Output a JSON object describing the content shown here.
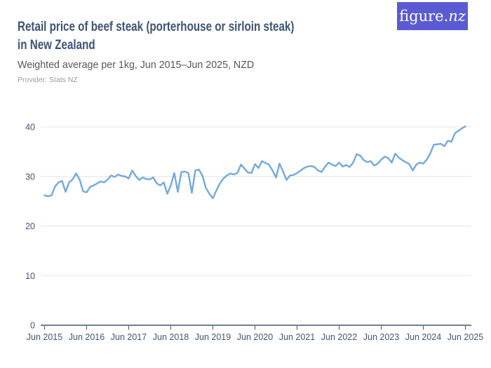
{
  "header": {
    "title_line1": "Retail price of beef steak (porterhouse or sirloin steak)",
    "title_line2": "in New Zealand",
    "subtitle": "Weighted average per 1kg, Jun 2015–Jun 2025, NZD",
    "provider": "Provider: Stats NZ",
    "logo_text_main": "figure.",
    "logo_text_suffix": "nz"
  },
  "colors": {
    "logo_background": "#5a5bd3",
    "title_text": "#3c5472",
    "subtitle_text": "#53575d",
    "provider_text": "#9b9c9e",
    "axis": "#3e5674",
    "grid": "#e4e4e4",
    "line": "#73a9dc"
  },
  "chart_data": {
    "type": "line",
    "title": "Retail price of beef steak (porterhouse or sirloin steak) in New Zealand",
    "subtitle": "Weighted average per 1kg, Jun 2015–Jun 2025, NZD",
    "unit": "NZD per 1kg",
    "x_start": "Jun 2015",
    "x_end": "Jun 2025",
    "x_interval": "monthly",
    "x_tick_labels": [
      "Jun 2015",
      "Jun 2016",
      "Jun 2017",
      "Jun 2018",
      "Jun 2019",
      "Jun 2020",
      "Jun 2021",
      "Jun 2022",
      "Jun 2023",
      "Jun 2024",
      "Jun 2025"
    ],
    "y_ticks": [
      0,
      10,
      20,
      30,
      40
    ],
    "ylim": [
      0,
      40
    ],
    "grid": "horizontal",
    "legend": "none",
    "series": [
      {
        "name": "Retail price of beef steak, weighted average per 1kg",
        "color": "#73a9dc",
        "values": [
          26.2,
          26.0,
          26.2,
          28.0,
          28.8,
          29.1,
          26.9,
          28.8,
          29.4,
          30.6,
          29.4,
          27.0,
          26.8,
          27.9,
          28.2,
          28.6,
          29.0,
          28.8,
          29.4,
          30.2,
          29.9,
          30.4,
          30.1,
          30.0,
          29.6,
          31.2,
          30.1,
          29.3,
          29.8,
          29.5,
          29.4,
          29.8,
          28.6,
          28.2,
          28.8,
          26.5,
          28.2,
          30.7,
          26.9,
          30.9,
          31.0,
          30.7,
          26.7,
          31.2,
          31.4,
          30.2,
          27.7,
          26.5,
          25.6,
          27.2,
          28.6,
          29.6,
          30.2,
          30.6,
          30.4,
          30.7,
          32.4,
          31.6,
          30.8,
          30.7,
          32.5,
          31.7,
          33.1,
          32.7,
          32.4,
          31.2,
          29.8,
          32.6,
          31.0,
          29.3,
          30.2,
          30.3,
          30.7,
          31.2,
          31.7,
          32.0,
          32.1,
          31.9,
          31.2,
          30.9,
          32.0,
          32.8,
          32.4,
          32.1,
          32.8,
          32.0,
          32.3,
          31.9,
          32.8,
          34.5,
          34.2,
          33.3,
          32.9,
          33.1,
          32.2,
          32.6,
          33.4,
          34.0,
          33.7,
          32.8,
          34.6,
          33.8,
          33.3,
          32.9,
          32.5,
          31.2,
          32.4,
          32.8,
          32.6,
          33.4,
          34.7,
          36.4,
          36.5,
          36.6,
          36.1,
          37.2,
          37.0,
          38.7,
          39.2,
          39.7,
          40.1
        ]
      }
    ]
  }
}
